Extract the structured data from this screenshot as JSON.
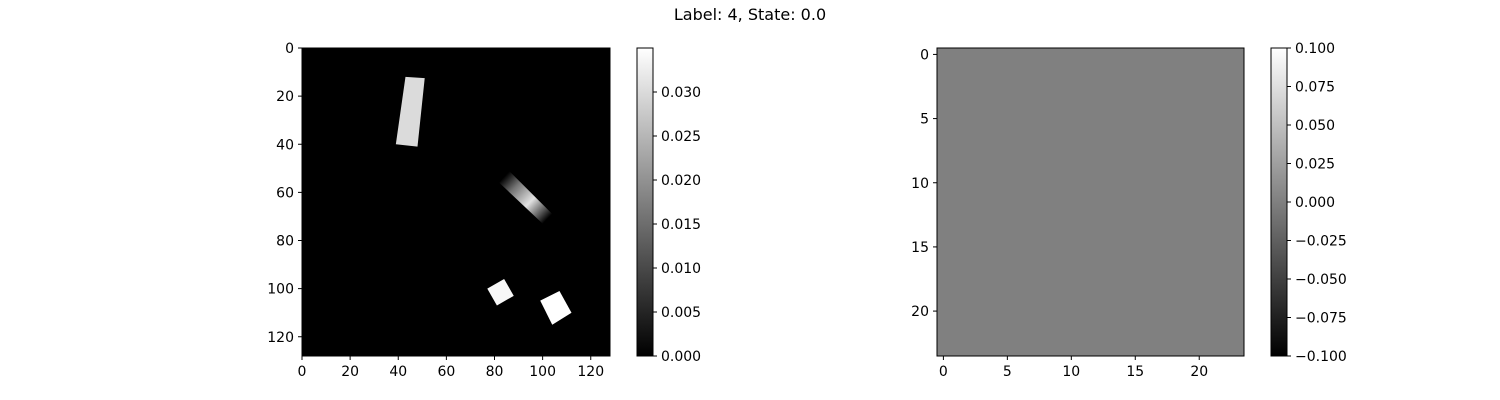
{
  "figure": {
    "title": "Label: 4, State: 0.0"
  },
  "chart_data": [
    {
      "type": "heatmap",
      "title": "",
      "xlabel": "",
      "ylabel": "",
      "cmap": "gray",
      "image_size": [
        128,
        128
      ],
      "xlim": [
        0,
        128
      ],
      "ylim": [
        128,
        0
      ],
      "xticks": [
        0,
        20,
        40,
        60,
        80,
        100,
        120
      ],
      "yticks": [
        0,
        20,
        40,
        60,
        80,
        100,
        120
      ],
      "shapes": [
        {
          "kind": "bar-vertical-tilted",
          "corners": [
            [
              43,
              12
            ],
            [
              51,
              12.5
            ],
            [
              48,
              41
            ],
            [
              39,
              40
            ]
          ],
          "value": 0.03
        },
        {
          "kind": "gradient-bar",
          "corners": [
            [
              86,
              51
            ],
            [
              104,
              69
            ],
            [
              100,
              73
            ],
            [
              82,
              56
            ]
          ],
          "value_center": 0.031,
          "value_edge": 0.0
        },
        {
          "kind": "square",
          "corners": [
            [
              77,
              100
            ],
            [
              84,
              96
            ],
            [
              88,
              103
            ],
            [
              81,
              107
            ]
          ],
          "value": 0.034
        },
        {
          "kind": "square",
          "corners": [
            [
              99,
              105
            ],
            [
              107,
              101
            ],
            [
              112,
              110
            ],
            [
              104,
              115
            ]
          ],
          "value": 0.035
        }
      ],
      "colorbar": {
        "range": [
          0.0,
          0.035
        ],
        "ticks": [
          0.0,
          0.005,
          0.01,
          0.015,
          0.02,
          0.025,
          0.03
        ],
        "tick_labels": [
          "0.000",
          "0.005",
          "0.010",
          "0.015",
          "0.020",
          "0.025",
          "0.030"
        ]
      }
    },
    {
      "type": "heatmap",
      "title": "",
      "xlabel": "",
      "ylabel": "",
      "cmap": "gray",
      "image_size": [
        24,
        24
      ],
      "xlim": [
        -0.5,
        23.5
      ],
      "ylim": [
        23.5,
        -0.5
      ],
      "xticks": [
        0,
        5,
        10,
        15,
        20
      ],
      "yticks": [
        0,
        5,
        10,
        15,
        20
      ],
      "constant_value": 0.0,
      "colorbar": {
        "range": [
          -0.1,
          0.1
        ],
        "ticks": [
          -0.1,
          -0.075,
          -0.05,
          -0.025,
          0.0,
          0.025,
          0.05,
          0.075,
          0.1
        ],
        "tick_labels": [
          "−0.100",
          "−0.075",
          "−0.050",
          "−0.025",
          "0.000",
          "0.025",
          "0.050",
          "0.075",
          "0.100"
        ]
      }
    }
  ]
}
